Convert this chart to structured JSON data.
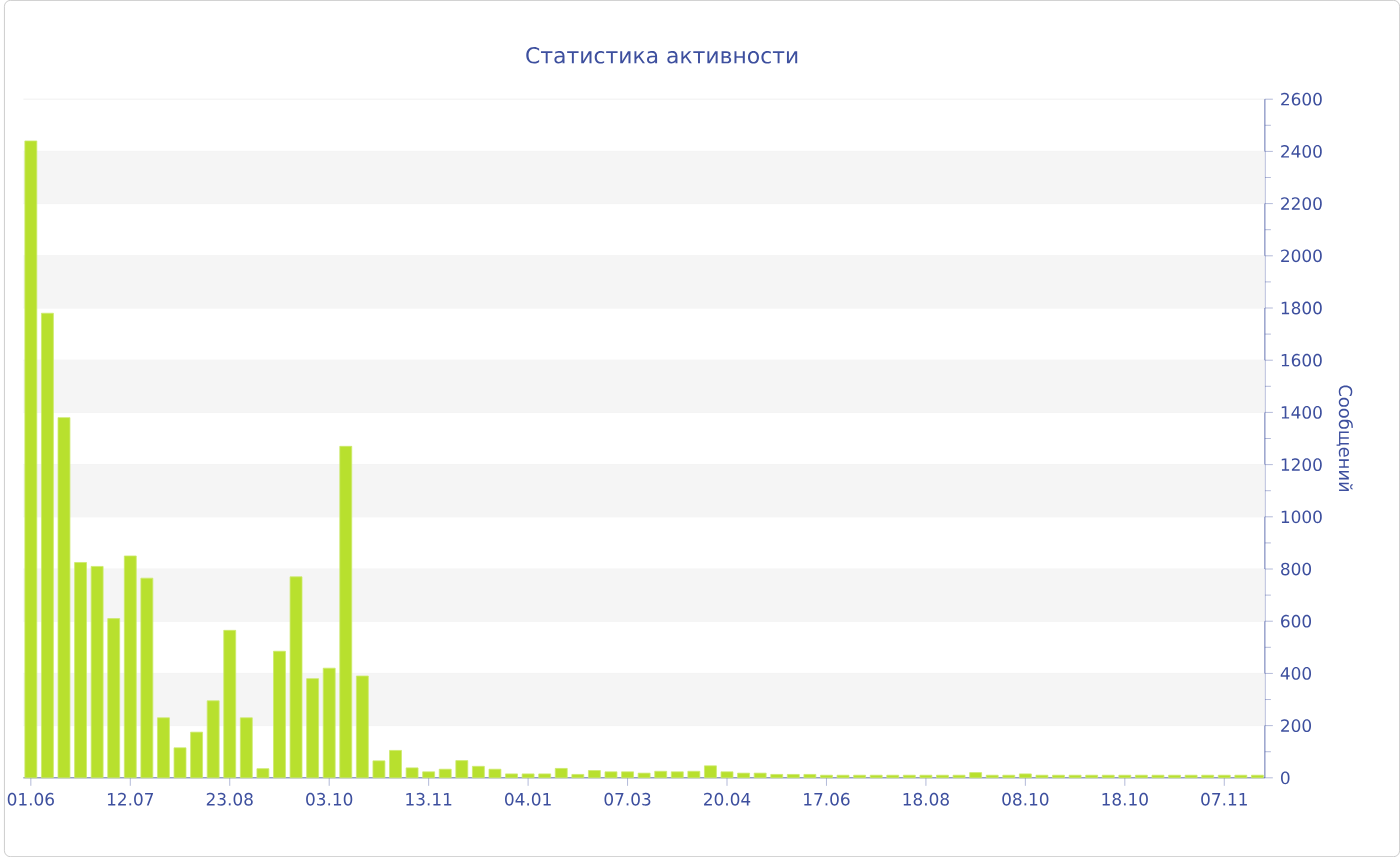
{
  "chart_data": {
    "type": "bar",
    "title": "Статистика активности",
    "ylabel": "Сообщений",
    "categories": [
      "01.06",
      null,
      null,
      null,
      null,
      null,
      "12.07",
      null,
      null,
      null,
      null,
      null,
      "23.08",
      null,
      null,
      null,
      null,
      null,
      "03.10",
      null,
      null,
      null,
      null,
      null,
      "13.11",
      null,
      null,
      null,
      null,
      null,
      "04.01",
      null,
      null,
      null,
      null,
      null,
      "07.03",
      null,
      null,
      null,
      null,
      null,
      "20.04",
      null,
      null,
      null,
      null,
      null,
      "17.06",
      null,
      null,
      null,
      null,
      null,
      "18.08",
      null,
      null,
      null,
      null,
      null,
      "08.10",
      null,
      null,
      null,
      null,
      null,
      "18.10",
      null,
      null,
      null,
      null,
      null,
      "07.11",
      null,
      null
    ],
    "values": [
      2440,
      1780,
      1380,
      825,
      810,
      610,
      850,
      765,
      230,
      115,
      175,
      295,
      565,
      230,
      35,
      485,
      770,
      380,
      420,
      1270,
      390,
      65,
      105,
      38,
      23,
      33,
      66,
      44,
      33,
      15,
      15,
      15,
      36,
      13,
      28,
      23,
      23,
      18,
      25,
      23,
      25,
      46,
      23,
      18,
      18,
      13,
      13,
      13,
      10,
      10,
      10,
      10,
      10,
      10,
      10,
      10,
      10,
      20,
      10,
      10,
      15,
      10,
      10,
      10,
      10,
      10,
      10,
      10,
      10,
      10,
      10,
      10,
      10,
      10,
      10
    ],
    "color": "#b8e02e",
    "ylim": [
      0,
      2600
    ],
    "yticks": [
      0,
      200,
      400,
      600,
      800,
      1000,
      1200,
      1400,
      1600,
      1800,
      2000,
      2200,
      2400,
      2600
    ],
    "grid": true
  }
}
